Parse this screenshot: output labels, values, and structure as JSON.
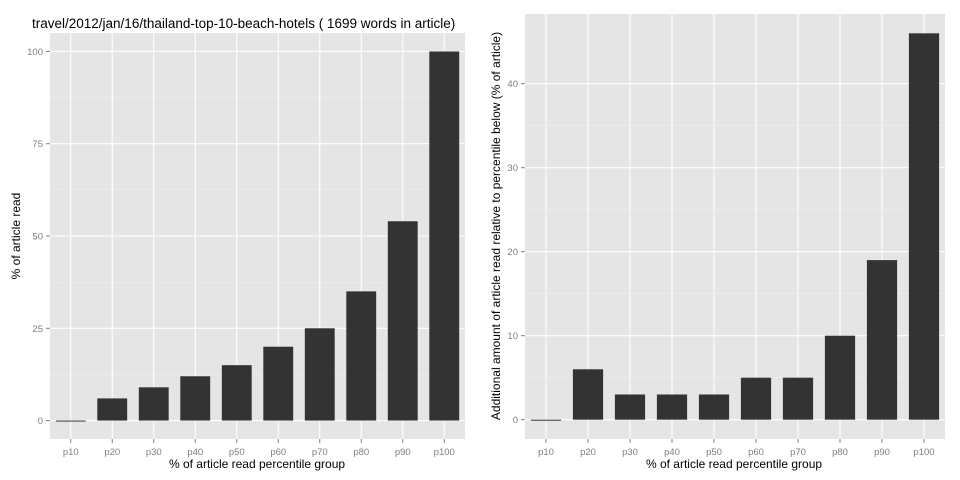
{
  "chart_data": [
    {
      "type": "bar",
      "title": "travel/2012/jan/16/thailand-top-10-beach-hotels ( 1699 words in article)",
      "xlabel": "% of article read percentile group",
      "ylabel": "% of article read",
      "categories": [
        "p10",
        "p20",
        "p30",
        "p40",
        "p50",
        "p60",
        "p70",
        "p80",
        "p90",
        "p100"
      ],
      "values": [
        0,
        6,
        9,
        12,
        15,
        20,
        25,
        35,
        54,
        100
      ],
      "ylim": [
        -5,
        105
      ],
      "yticks": [
        0,
        25,
        50,
        75,
        100
      ],
      "grid": true,
      "bar_color": "#333333",
      "panel_color": "#e5e5e5"
    },
    {
      "type": "bar",
      "title": "",
      "xlabel": "% of article read percentile group",
      "ylabel": "Additional amount of article read relative to percentile below (% of article)",
      "categories": [
        "p10",
        "p20",
        "p30",
        "p40",
        "p50",
        "p60",
        "p70",
        "p80",
        "p90",
        "p100"
      ],
      "values": [
        0,
        6,
        3,
        3,
        3,
        5,
        5,
        10,
        19,
        46
      ],
      "ylim": [
        -2.3,
        48.3
      ],
      "yticks": [
        0,
        10,
        20,
        30,
        40
      ],
      "grid": true,
      "bar_color": "#333333",
      "panel_color": "#e5e5e5"
    }
  ]
}
